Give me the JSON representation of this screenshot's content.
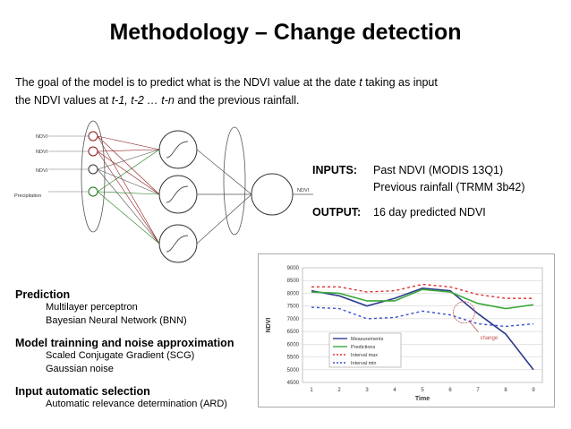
{
  "title": "Methodology – Change detection",
  "goal": {
    "line1_a": "The goal of the model is to predict what is the NDVI value at the date ",
    "line1_t": "t",
    "line1_b": " taking as input",
    "line2_a": "the NDVI values at ",
    "line2_vals": "t-1, t-2 … t-n",
    "line2_b": " and the previous rainfall."
  },
  "nn_diagram": {
    "inputs": [
      "NDVI",
      "NDVI",
      "NDVI",
      "Precipitation"
    ],
    "output": "NDVI"
  },
  "io": {
    "inputs_label": "INPUTS:",
    "inputs_1": "Past NDVI (MODIS 13Q1)",
    "inputs_2": "Previous rainfall (TRMM 3b42)",
    "output_label": "OUTPUT:",
    "output_1": "16 day predicted NDVI"
  },
  "sections": [
    {
      "title": "Prediction",
      "items": [
        "Multilayer perceptron",
        "Bayesian Neural Network (BNN)"
      ]
    },
    {
      "title": "Model trainning and noise approximation",
      "items": [
        "Scaled Conjugate Gradient (SCG)",
        "Gaussian noise"
      ]
    },
    {
      "title": "Input automatic selection",
      "items": [
        "Automatic relevance determination (ARD)"
      ]
    }
  ],
  "chart_data": {
    "type": "line",
    "xlabel": "Time",
    "ylabel": "NDVI",
    "x": [
      1,
      2,
      3,
      4,
      5,
      6,
      7,
      8,
      9
    ],
    "yticks": [
      4500,
      5000,
      5500,
      6000,
      6500,
      7000,
      7500,
      8000,
      8500,
      9000
    ],
    "ylim": [
      4500,
      9000
    ],
    "grid": true,
    "legend_position": "inside-left",
    "annotation": "change",
    "series": [
      {
        "name": "Measurements",
        "color": "#2b3a8c",
        "style": "solid",
        "values": [
          8100,
          7900,
          7500,
          7800,
          8200,
          8100,
          7200,
          6400,
          5000
        ]
      },
      {
        "name": "Predictions",
        "color": "#3aa83a",
        "style": "solid",
        "values": [
          8050,
          8000,
          7700,
          7700,
          8150,
          8050,
          7600,
          7400,
          7550
        ]
      },
      {
        "name": "Interval max",
        "color": "#e03030",
        "style": "dotted",
        "values": [
          8250,
          8250,
          8050,
          8100,
          8350,
          8250,
          7950,
          7800,
          7800
        ]
      },
      {
        "name": "Interval min",
        "color": "#3a50d0",
        "style": "dotted",
        "values": [
          7450,
          7400,
          7000,
          7050,
          7300,
          7150,
          6800,
          6700,
          6800
        ]
      }
    ]
  }
}
